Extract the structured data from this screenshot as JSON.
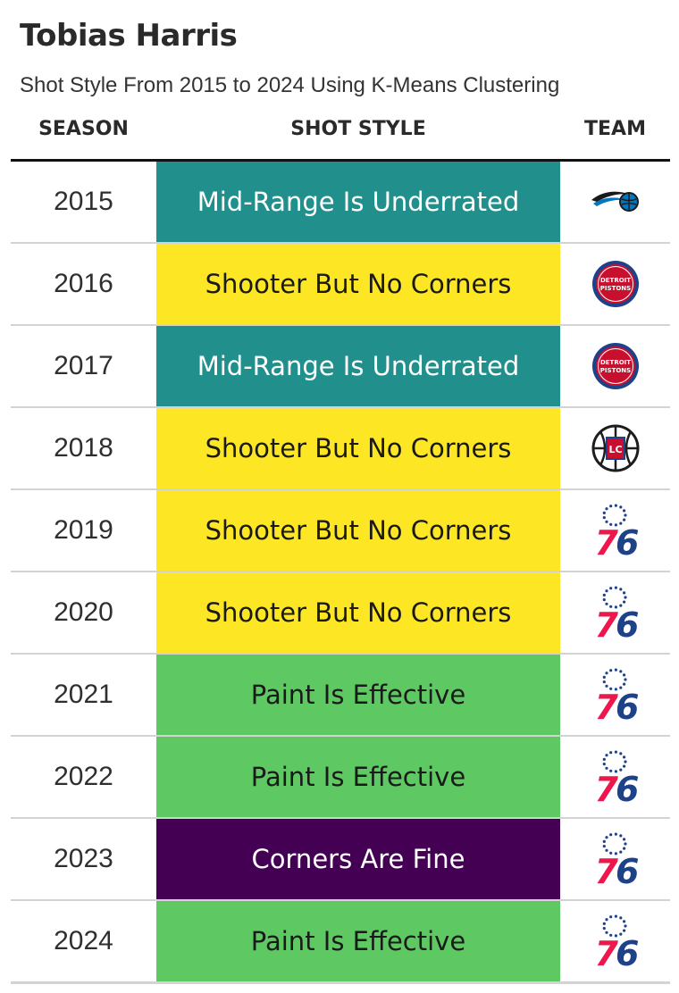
{
  "title": "Tobias Harris",
  "subtitle": "Shot Style From 2015 to 2024 Using K-Means Clustering",
  "columns": {
    "season": "SEASON",
    "style": "SHOT STYLE",
    "team": "TEAM"
  },
  "styles": {
    "Mid-Range Is Underrated": {
      "bg": "#21908c",
      "fg": "#ffffff"
    },
    "Shooter But No Corners": {
      "bg": "#fde725",
      "fg": "#1a1a1a"
    },
    "Paint Is Effective": {
      "bg": "#5ec962",
      "fg": "#1a1a1a"
    },
    "Corners Are Fine": {
      "bg": "#440154",
      "fg": "#ffffff"
    }
  },
  "rows": [
    {
      "season": "2015",
      "style": "Mid-Range Is Underrated",
      "team_logo": "magic-logo-icon"
    },
    {
      "season": "2016",
      "style": "Shooter But No Corners",
      "team_logo": "pistons-logo-icon",
      "team_logo_text": [
        "DETROIT",
        "PISTONS"
      ]
    },
    {
      "season": "2017",
      "style": "Mid-Range Is Underrated",
      "team_logo": "pistons-logo-icon",
      "team_logo_text": [
        "DETROIT",
        "PISTONS"
      ]
    },
    {
      "season": "2018",
      "style": "Shooter But No Corners",
      "team_logo": "clippers-logo-icon",
      "team_logo_text": [
        "LC"
      ]
    },
    {
      "season": "2019",
      "style": "Shooter But No Corners",
      "team_logo": "sixers-logo-icon",
      "team_logo_text": [
        "76"
      ]
    },
    {
      "season": "2020",
      "style": "Shooter But No Corners",
      "team_logo": "sixers-logo-icon",
      "team_logo_text": [
        "76"
      ]
    },
    {
      "season": "2021",
      "style": "Paint Is Effective",
      "team_logo": "sixers-logo-icon",
      "team_logo_text": [
        "76"
      ]
    },
    {
      "season": "2022",
      "style": "Paint Is Effective",
      "team_logo": "sixers-logo-icon",
      "team_logo_text": [
        "76"
      ]
    },
    {
      "season": "2023",
      "style": "Corners Are Fine",
      "team_logo": "sixers-logo-icon",
      "team_logo_text": [
        "76"
      ]
    },
    {
      "season": "2024",
      "style": "Paint Is Effective",
      "team_logo": "sixers-logo-icon",
      "team_logo_text": [
        "76"
      ]
    }
  ]
}
